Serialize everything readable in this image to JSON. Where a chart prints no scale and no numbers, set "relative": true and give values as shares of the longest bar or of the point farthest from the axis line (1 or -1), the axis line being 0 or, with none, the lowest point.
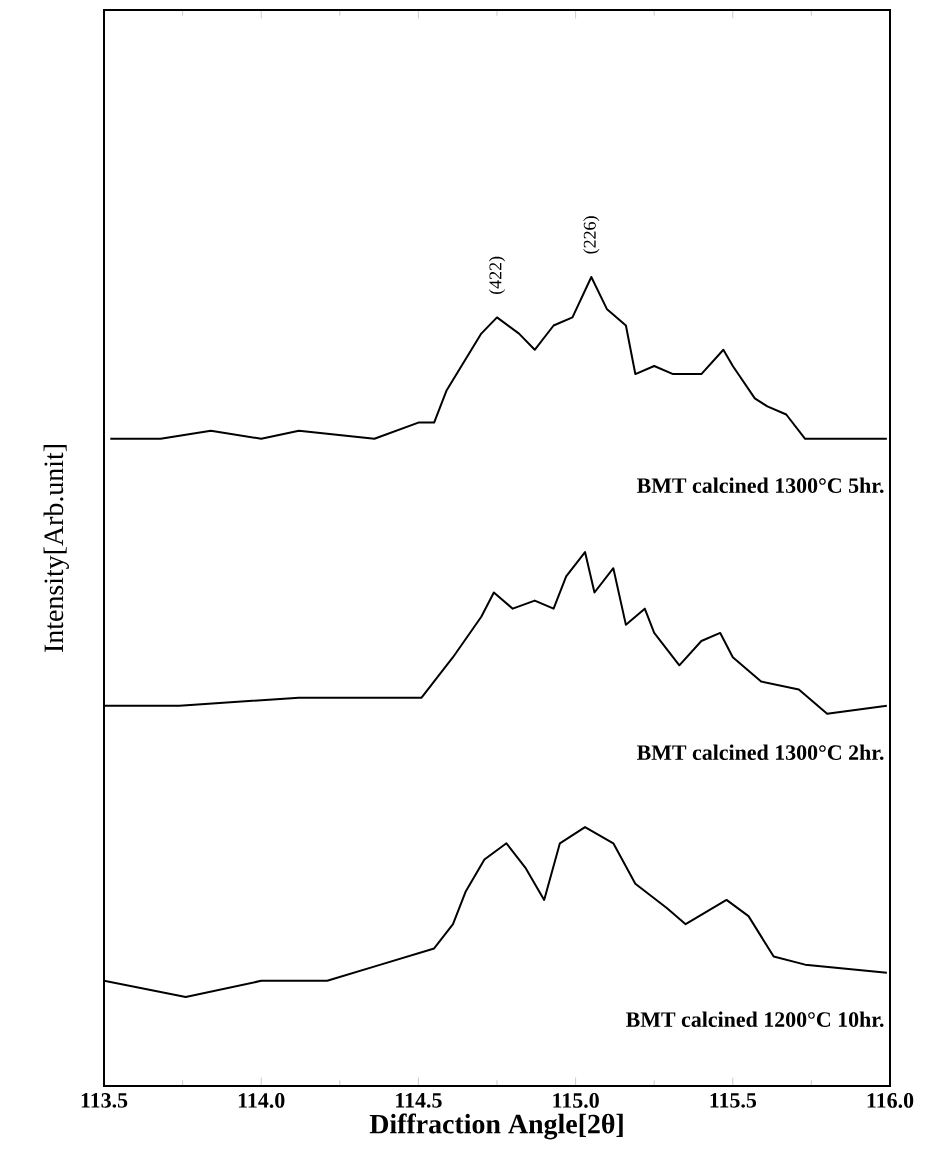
{
  "chart_data": {
    "type": "line",
    "relative": true,
    "xlabel": "Diffraction Angle[2θ]",
    "ylabel": "Intensity[Arb.unit]",
    "xlim": [
      113.5,
      116.0
    ],
    "xticks": [
      {
        "value": 113.5,
        "label": "113.5"
      },
      {
        "value": 114.0,
        "label": "114.0"
      },
      {
        "value": 114.5,
        "label": "114.5"
      },
      {
        "value": 115.0,
        "label": "115.0"
      },
      {
        "value": 115.5,
        "label": "115.5"
      },
      {
        "value": 116.0,
        "label": "116.0"
      }
    ],
    "tick_labels": "x",
    "grid": false,
    "legend": false,
    "marker": "none",
    "line_style": "solid",
    "annotations": [
      {
        "text": "(422)",
        "x": 114.75,
        "y": 0.95
      },
      {
        "text": "(226)",
        "x": 115.05,
        "y": 1.0
      }
    ],
    "series": [
      {
        "name": "BMT calcined 1300°C 5hr.",
        "color": "#000000",
        "x": [
          113.52,
          113.68,
          113.84,
          114.0,
          114.12,
          114.36,
          114.5,
          114.55,
          114.59,
          114.7,
          114.75,
          114.82,
          114.87,
          114.93,
          114.99,
          115.05,
          115.1,
          115.16,
          115.19,
          115.25,
          115.31,
          115.4,
          115.47,
          115.5,
          115.57,
          115.61,
          115.67,
          115.73,
          115.82,
          115.99
        ],
        "values": [
          0.8,
          0.8,
          0.81,
          0.8,
          0.81,
          0.8,
          0.82,
          0.82,
          0.86,
          0.93,
          0.95,
          0.93,
          0.91,
          0.94,
          0.95,
          1.0,
          0.96,
          0.94,
          0.88,
          0.89,
          0.88,
          0.88,
          0.91,
          0.89,
          0.85,
          0.84,
          0.83,
          0.8,
          0.8,
          0.8
        ]
      },
      {
        "name": "BMT calcined 1300°C 2hr.",
        "color": "#000000",
        "x": [
          113.5,
          113.74,
          114.12,
          114.38,
          114.51,
          114.61,
          114.7,
          114.74,
          114.8,
          114.87,
          114.93,
          114.97,
          115.03,
          115.06,
          115.12,
          115.16,
          115.22,
          115.25,
          115.33,
          115.4,
          115.46,
          115.5,
          115.59,
          115.71,
          115.8,
          115.99
        ],
        "values": [
          0.47,
          0.47,
          0.48,
          0.48,
          0.48,
          0.53,
          0.58,
          0.61,
          0.59,
          0.6,
          0.59,
          0.63,
          0.66,
          0.61,
          0.64,
          0.57,
          0.59,
          0.56,
          0.52,
          0.55,
          0.56,
          0.53,
          0.5,
          0.49,
          0.46,
          0.47
        ]
      },
      {
        "name": "BMT calcined 1200°C 10hr.",
        "color": "#000000",
        "x": [
          113.5,
          113.76,
          114.0,
          114.21,
          114.38,
          114.55,
          114.61,
          114.65,
          114.71,
          114.78,
          114.84,
          114.9,
          114.95,
          115.03,
          115.12,
          115.19,
          115.29,
          115.35,
          115.48,
          115.55,
          115.63,
          115.73,
          115.99
        ],
        "values": [
          0.13,
          0.11,
          0.13,
          0.13,
          0.15,
          0.17,
          0.2,
          0.24,
          0.28,
          0.3,
          0.27,
          0.23,
          0.3,
          0.32,
          0.3,
          0.25,
          0.22,
          0.2,
          0.23,
          0.21,
          0.16,
          0.15,
          0.14
        ]
      }
    ]
  }
}
